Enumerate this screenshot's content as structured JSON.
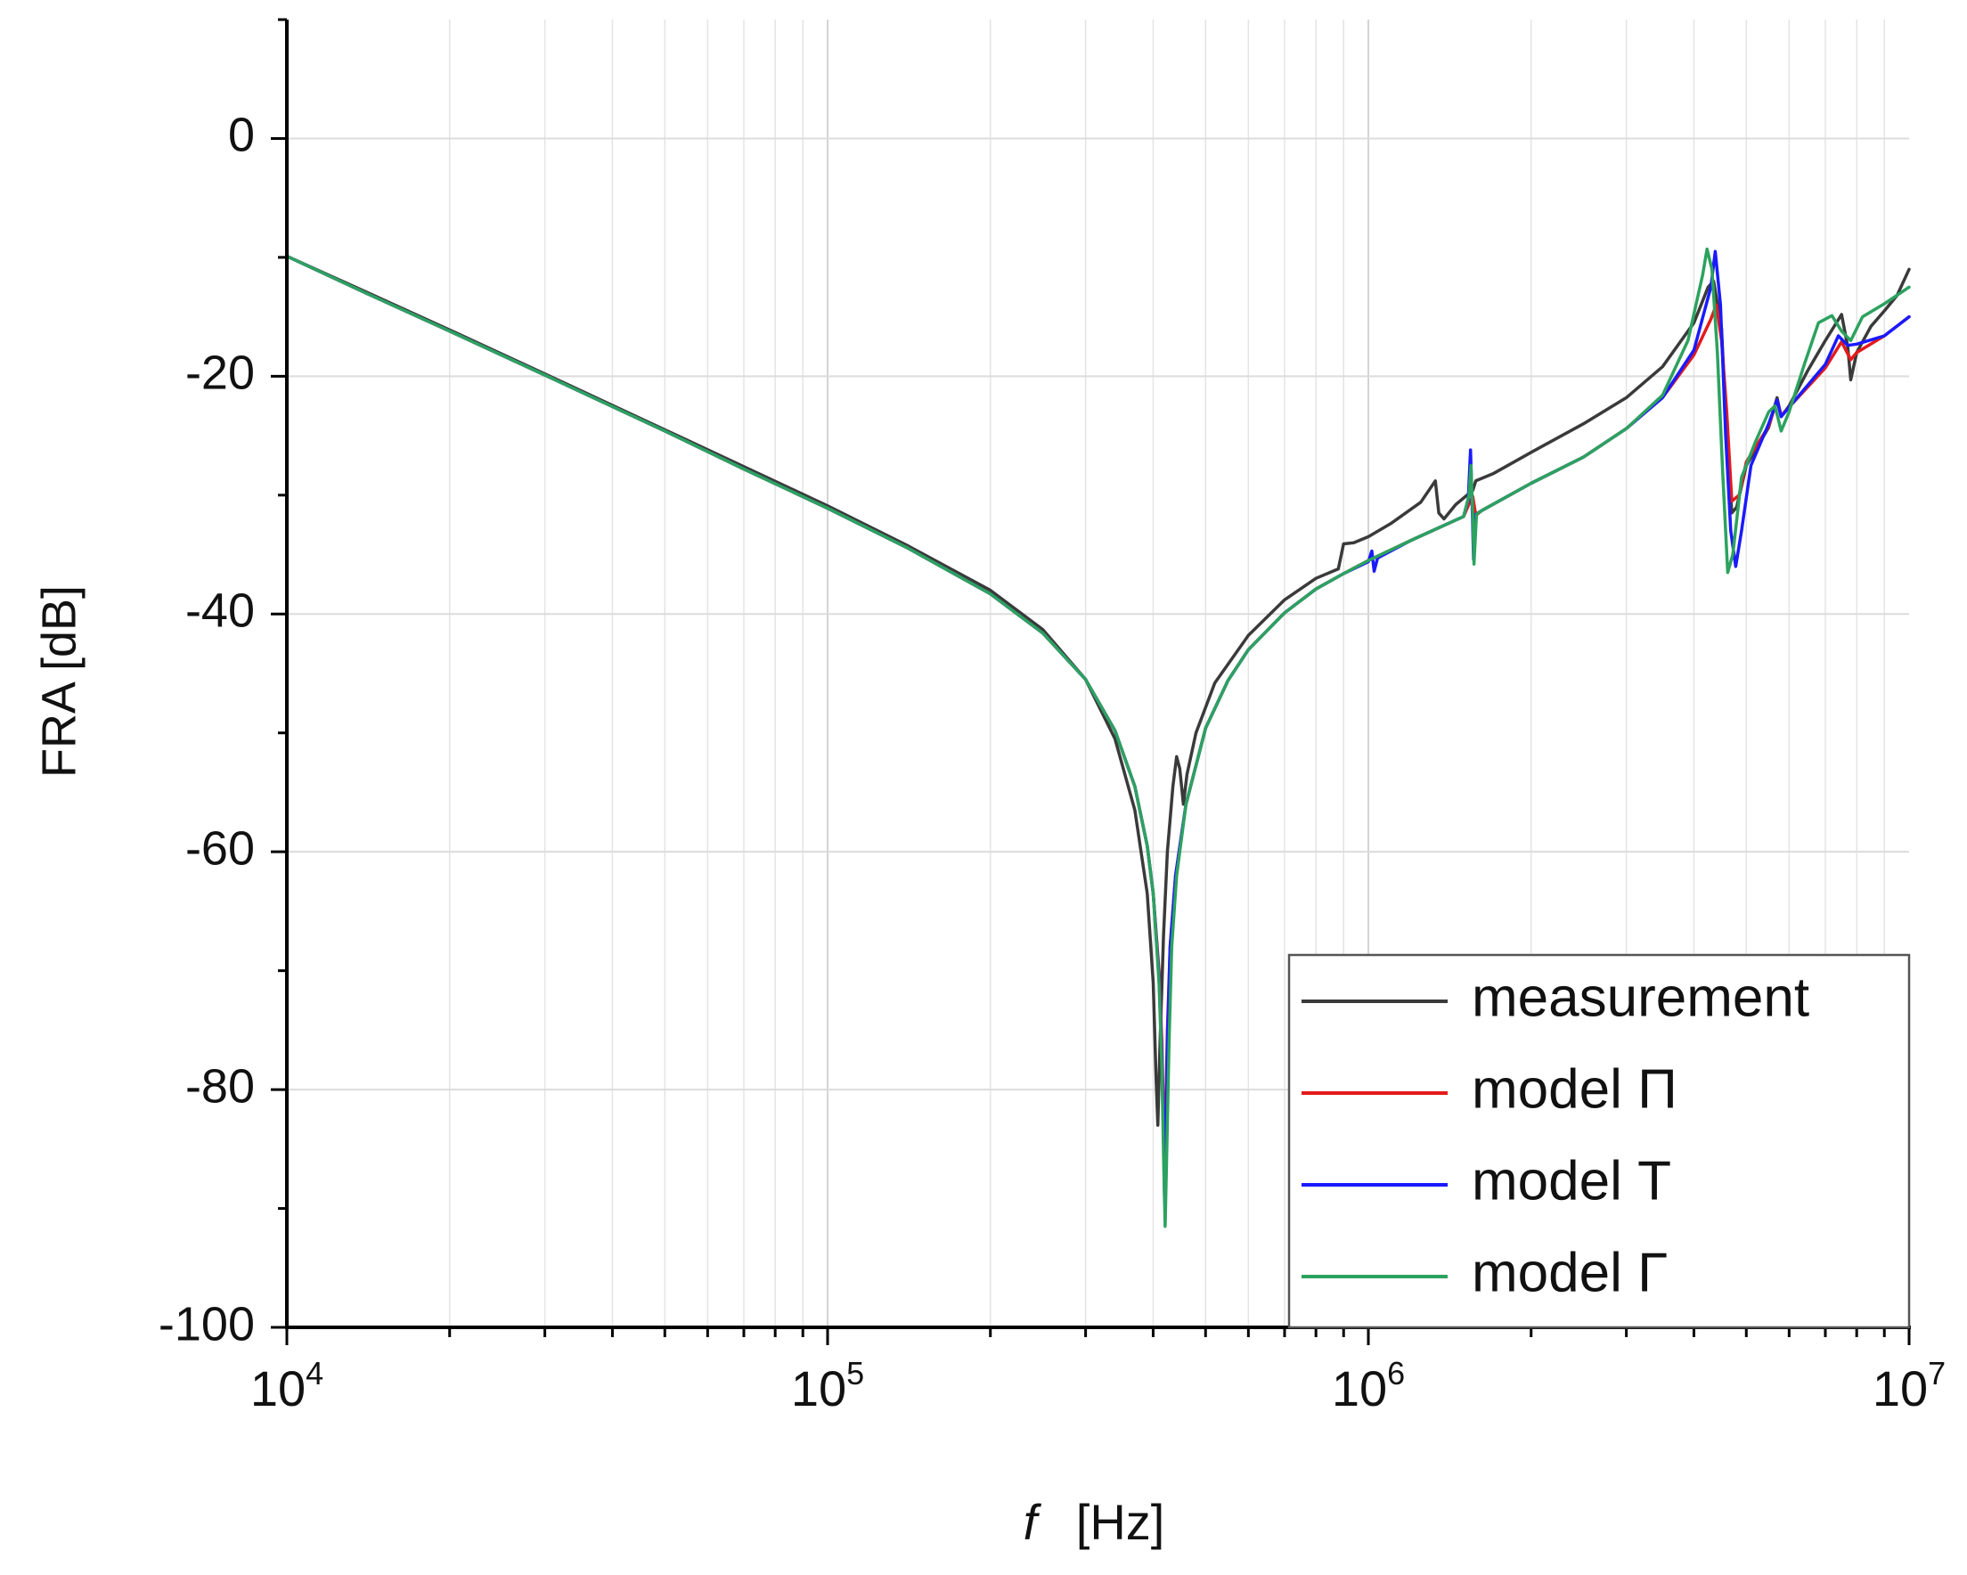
{
  "chart_data": {
    "type": "line",
    "title": "",
    "xlabel_var": "f",
    "xlabel_unit": "[Hz]",
    "ylabel": "FRA [dB]",
    "x_scale": "log",
    "xlim": [
      10000,
      10000000
    ],
    "ylim": [
      -100,
      10
    ],
    "x_ticks": [
      {
        "value": 10000,
        "base": "10",
        "exp": "4"
      },
      {
        "value": 100000,
        "base": "10",
        "exp": "5"
      },
      {
        "value": 1000000,
        "base": "10",
        "exp": "6"
      },
      {
        "value": 10000000,
        "base": "10",
        "exp": "7"
      }
    ],
    "y_ticks": [
      {
        "value": 0,
        "label": "0"
      },
      {
        "value": -20,
        "label": "-20"
      },
      {
        "value": -40,
        "label": "-40"
      },
      {
        "value": -60,
        "label": "-60"
      },
      {
        "value": -80,
        "label": "-80"
      },
      {
        "value": -100,
        "label": "-100"
      }
    ],
    "grid": true,
    "legend_position": "bottom-right",
    "series": [
      {
        "name": "measurement",
        "color": "#3a3a3a",
        "points": [
          [
            10000,
            -9.9
          ],
          [
            14000,
            -12.9
          ],
          [
            20000,
            -16.1
          ],
          [
            30000,
            -19.8
          ],
          [
            50000,
            -24.5
          ],
          [
            70000,
            -27.6
          ],
          [
            100000,
            -30.9
          ],
          [
            140000,
            -34.2
          ],
          [
            200000,
            -38.0
          ],
          [
            250000,
            -41.3
          ],
          [
            300000,
            -45.5
          ],
          [
            340000,
            -50.5
          ],
          [
            370000,
            -56.5
          ],
          [
            390000,
            -63.5
          ],
          [
            400000,
            -71.0
          ],
          [
            405000,
            -79.0
          ],
          [
            408000,
            -83.0
          ],
          [
            412000,
            -76.0
          ],
          [
            418000,
            -67.0
          ],
          [
            425000,
            -60.0
          ],
          [
            435000,
            -54.5
          ],
          [
            442000,
            -52.0
          ],
          [
            448000,
            -53.0
          ],
          [
            455000,
            -56.0
          ],
          [
            462000,
            -53.5
          ],
          [
            480000,
            -50.0
          ],
          [
            520000,
            -45.8
          ],
          [
            600000,
            -41.8
          ],
          [
            700000,
            -38.8
          ],
          [
            800000,
            -37.0
          ],
          [
            880000,
            -36.2
          ],
          [
            900000,
            -34.1
          ],
          [
            940000,
            -34.0
          ],
          [
            1000000,
            -33.5
          ],
          [
            1100000,
            -32.4
          ],
          [
            1250000,
            -30.6
          ],
          [
            1330000,
            -28.8
          ],
          [
            1350000,
            -31.5
          ],
          [
            1380000,
            -32.0
          ],
          [
            1450000,
            -30.8
          ],
          [
            1560000,
            -29.6
          ],
          [
            1580000,
            -28.8
          ],
          [
            1700000,
            -28.2
          ],
          [
            2000000,
            -26.4
          ],
          [
            2500000,
            -24.0
          ],
          [
            3000000,
            -21.8
          ],
          [
            3500000,
            -19.2
          ],
          [
            4000000,
            -15.5
          ],
          [
            4250000,
            -12.5
          ],
          [
            4350000,
            -12.0
          ],
          [
            4500000,
            -16.0
          ],
          [
            4600000,
            -25.0
          ],
          [
            4700000,
            -31.5
          ],
          [
            4800000,
            -31.0
          ],
          [
            5000000,
            -27.5
          ],
          [
            5500000,
            -24.3
          ],
          [
            5700000,
            -21.8
          ],
          [
            5800000,
            -23.4
          ],
          [
            6000000,
            -22.5
          ],
          [
            6500000,
            -19.5
          ],
          [
            7000000,
            -17.0
          ],
          [
            7500000,
            -14.8
          ],
          [
            7700000,
            -17.5
          ],
          [
            7800000,
            -20.3
          ],
          [
            8000000,
            -18.0
          ],
          [
            8500000,
            -15.8
          ],
          [
            9000000,
            -14.5
          ],
          [
            9500000,
            -13.2
          ],
          [
            10000000,
            -11.0
          ]
        ]
      },
      {
        "name": "model Π",
        "color": "#e41a1c",
        "points": [
          [
            10000,
            -9.9
          ],
          [
            14000,
            -13.0
          ],
          [
            20000,
            -16.2
          ],
          [
            30000,
            -19.9
          ],
          [
            50000,
            -24.6
          ],
          [
            70000,
            -27.8
          ],
          [
            100000,
            -31.1
          ],
          [
            140000,
            -34.4
          ],
          [
            200000,
            -38.3
          ],
          [
            250000,
            -41.6
          ],
          [
            300000,
            -45.5
          ],
          [
            340000,
            -49.8
          ],
          [
            370000,
            -54.5
          ],
          [
            390000,
            -59.5
          ],
          [
            400000,
            -63.5
          ],
          [
            410000,
            -70.0
          ],
          [
            415000,
            -76.0
          ],
          [
            418000,
            -82.0
          ],
          [
            420000,
            -86.5
          ],
          [
            422000,
            -82.0
          ],
          [
            425000,
            -75.0
          ],
          [
            430000,
            -68.0
          ],
          [
            440000,
            -62.0
          ],
          [
            460000,
            -56.0
          ],
          [
            500000,
            -49.6
          ],
          [
            550000,
            -45.6
          ],
          [
            600000,
            -43.0
          ],
          [
            700000,
            -39.9
          ],
          [
            800000,
            -37.9
          ],
          [
            900000,
            -36.6
          ],
          [
            1000000,
            -35.5
          ],
          [
            1200000,
            -33.8
          ],
          [
            1500000,
            -31.8
          ],
          [
            1540000,
            -30.6
          ],
          [
            1560000,
            -30.1
          ],
          [
            1580000,
            -31.7
          ],
          [
            1620000,
            -31.3
          ],
          [
            2000000,
            -29.0
          ],
          [
            2500000,
            -26.8
          ],
          [
            3000000,
            -24.4
          ],
          [
            3500000,
            -21.8
          ],
          [
            4000000,
            -18.2
          ],
          [
            4300000,
            -15.2
          ],
          [
            4400000,
            -14.0
          ],
          [
            4500000,
            -17.0
          ],
          [
            4600000,
            -23.0
          ],
          [
            4700000,
            -30.5
          ],
          [
            4850000,
            -30.0
          ],
          [
            5000000,
            -27.2
          ],
          [
            5500000,
            -24.2
          ],
          [
            5700000,
            -22.0
          ],
          [
            5800000,
            -23.3
          ],
          [
            6000000,
            -22.6
          ],
          [
            7000000,
            -19.3
          ],
          [
            7500000,
            -17.1
          ],
          [
            7800000,
            -18.6
          ],
          [
            8000000,
            -18.0
          ],
          [
            9000000,
            -16.6
          ],
          [
            10000000,
            -15.0
          ]
        ]
      },
      {
        "name": "model Τ",
        "color": "#1a1aff",
        "points": [
          [
            10000,
            -9.9
          ],
          [
            14000,
            -13.0
          ],
          [
            20000,
            -16.2
          ],
          [
            30000,
            -19.9
          ],
          [
            50000,
            -24.6
          ],
          [
            70000,
            -27.8
          ],
          [
            100000,
            -31.1
          ],
          [
            140000,
            -34.4
          ],
          [
            200000,
            -38.3
          ],
          [
            250000,
            -41.6
          ],
          [
            300000,
            -45.5
          ],
          [
            340000,
            -49.8
          ],
          [
            370000,
            -54.5
          ],
          [
            390000,
            -59.5
          ],
          [
            400000,
            -63.5
          ],
          [
            410000,
            -70.5
          ],
          [
            415000,
            -77.0
          ],
          [
            418000,
            -84.0
          ],
          [
            420000,
            -89.5
          ],
          [
            422000,
            -84.0
          ],
          [
            425000,
            -76.0
          ],
          [
            430000,
            -68.0
          ],
          [
            440000,
            -62.0
          ],
          [
            460000,
            -56.0
          ],
          [
            500000,
            -49.6
          ],
          [
            550000,
            -45.6
          ],
          [
            600000,
            -43.0
          ],
          [
            700000,
            -39.9
          ],
          [
            800000,
            -37.9
          ],
          [
            900000,
            -36.6
          ],
          [
            1000000,
            -35.6
          ],
          [
            1015000,
            -34.7
          ],
          [
            1025000,
            -36.4
          ],
          [
            1040000,
            -35.3
          ],
          [
            1200000,
            -33.8
          ],
          [
            1500000,
            -31.8
          ],
          [
            1530000,
            -30.4
          ],
          [
            1545000,
            -26.2
          ],
          [
            1555000,
            -30.5
          ],
          [
            1565000,
            -35.4
          ],
          [
            1580000,
            -31.6
          ],
          [
            1620000,
            -31.3
          ],
          [
            2000000,
            -29.0
          ],
          [
            2500000,
            -26.8
          ],
          [
            3000000,
            -24.4
          ],
          [
            3500000,
            -21.8
          ],
          [
            4000000,
            -17.8
          ],
          [
            4300000,
            -12.5
          ],
          [
            4380000,
            -9.5
          ],
          [
            4480000,
            -14.0
          ],
          [
            4580000,
            -25.0
          ],
          [
            4680000,
            -33.0
          ],
          [
            4780000,
            -36.0
          ],
          [
            4900000,
            -33.0
          ],
          [
            5100000,
            -27.5
          ],
          [
            5500000,
            -24.0
          ],
          [
            5700000,
            -22.0
          ],
          [
            5800000,
            -23.4
          ],
          [
            6000000,
            -22.6
          ],
          [
            7000000,
            -19.0
          ],
          [
            7400000,
            -16.6
          ],
          [
            7700000,
            -17.4
          ],
          [
            8000000,
            -17.3
          ],
          [
            9000000,
            -16.6
          ],
          [
            10000000,
            -15.0
          ]
        ]
      },
      {
        "name": "model Γ",
        "color": "#2ca25f",
        "points": [
          [
            10000,
            -9.9
          ],
          [
            14000,
            -13.0
          ],
          [
            20000,
            -16.2
          ],
          [
            30000,
            -19.9
          ],
          [
            50000,
            -24.6
          ],
          [
            70000,
            -27.8
          ],
          [
            100000,
            -31.1
          ],
          [
            140000,
            -34.4
          ],
          [
            200000,
            -38.3
          ],
          [
            250000,
            -41.6
          ],
          [
            300000,
            -45.5
          ],
          [
            340000,
            -49.8
          ],
          [
            370000,
            -54.5
          ],
          [
            390000,
            -59.5
          ],
          [
            400000,
            -63.5
          ],
          [
            410000,
            -71.0
          ],
          [
            415000,
            -78.0
          ],
          [
            418000,
            -85.5
          ],
          [
            421000,
            -91.5
          ],
          [
            424000,
            -85.0
          ],
          [
            428000,
            -76.0
          ],
          [
            433000,
            -68.0
          ],
          [
            442000,
            -62.0
          ],
          [
            460000,
            -56.0
          ],
          [
            500000,
            -49.6
          ],
          [
            550000,
            -45.6
          ],
          [
            600000,
            -43.0
          ],
          [
            700000,
            -39.9
          ],
          [
            800000,
            -37.9
          ],
          [
            900000,
            -36.6
          ],
          [
            1000000,
            -35.5
          ],
          [
            1200000,
            -33.8
          ],
          [
            1500000,
            -31.8
          ],
          [
            1535000,
            -30.0
          ],
          [
            1548000,
            -27.5
          ],
          [
            1558000,
            -31.0
          ],
          [
            1568000,
            -35.8
          ],
          [
            1585000,
            -31.6
          ],
          [
            1620000,
            -31.3
          ],
          [
            2000000,
            -29.0
          ],
          [
            2500000,
            -26.8
          ],
          [
            3000000,
            -24.4
          ],
          [
            3500000,
            -21.6
          ],
          [
            3900000,
            -17.0
          ],
          [
            4150000,
            -11.5
          ],
          [
            4230000,
            -9.3
          ],
          [
            4320000,
            -11.0
          ],
          [
            4420000,
            -18.0
          ],
          [
            4520000,
            -28.0
          ],
          [
            4620000,
            -36.5
          ],
          [
            4720000,
            -35.0
          ],
          [
            4900000,
            -28.5
          ],
          [
            5200000,
            -25.5
          ],
          [
            5500000,
            -23.0
          ],
          [
            5650000,
            -22.5
          ],
          [
            5800000,
            -24.6
          ],
          [
            6000000,
            -23.0
          ],
          [
            6400000,
            -19.0
          ],
          [
            6800000,
            -15.5
          ],
          [
            7200000,
            -14.9
          ],
          [
            7500000,
            -16.2
          ],
          [
            7800000,
            -17.0
          ],
          [
            8200000,
            -15.0
          ],
          [
            9000000,
            -13.9
          ],
          [
            10000000,
            -12.5
          ]
        ]
      }
    ]
  }
}
